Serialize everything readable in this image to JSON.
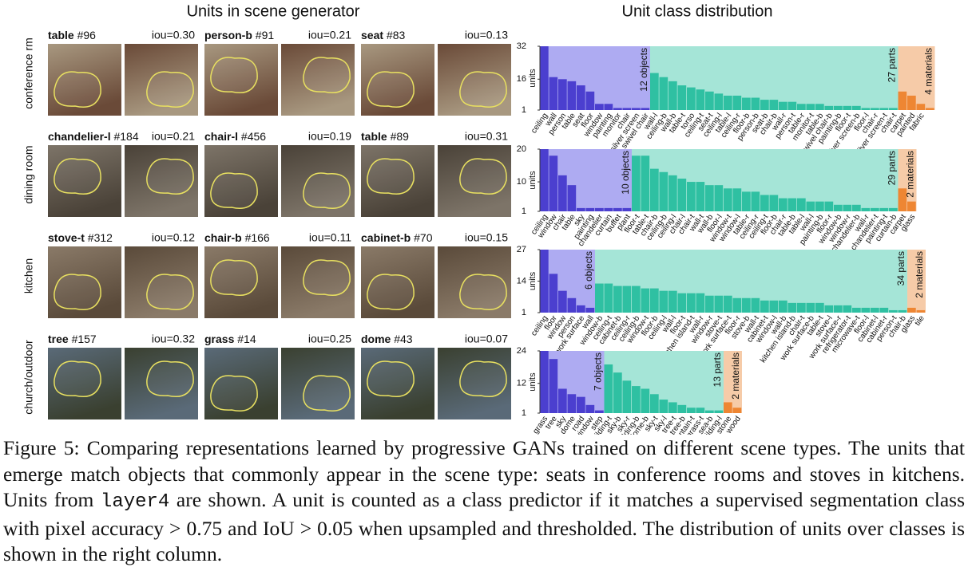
{
  "left": {
    "title": "Units in scene generator",
    "rows": [
      {
        "scene": "conference rm",
        "units": [
          {
            "name": "table",
            "id": "#96",
            "iou": "iou=0.30"
          },
          {
            "name": "person-b",
            "id": "#91",
            "iou": "iou=0.21"
          },
          {
            "name": "seat",
            "id": "#83",
            "iou": "iou=0.13"
          }
        ]
      },
      {
        "scene": "dining room",
        "units": [
          {
            "name": "chandelier-l",
            "id": "#184",
            "iou": "iou=0.21"
          },
          {
            "name": "chair-l",
            "id": "#456",
            "iou": "iou=0.19"
          },
          {
            "name": "table",
            "id": "#89",
            "iou": "iou=0.31"
          }
        ]
      },
      {
        "scene": "kitchen",
        "units": [
          {
            "name": "stove-t",
            "id": "#312",
            "iou": "iou=0.12"
          },
          {
            "name": "chair-b",
            "id": "#166",
            "iou": "iou=0.11"
          },
          {
            "name": "cabinet-b",
            "id": "#70",
            "iou": "iou=0.15"
          }
        ]
      },
      {
        "scene": "church/outdoor",
        "units": [
          {
            "name": "tree",
            "id": "#157",
            "iou": "iou=0.32"
          },
          {
            "name": "grass",
            "id": "#14",
            "iou": "iou=0.25"
          },
          {
            "name": "dome",
            "id": "#43",
            "iou": "iou=0.07"
          }
        ]
      }
    ]
  },
  "right_title": "Unit class distribution",
  "chart_data": [
    {
      "type": "bar",
      "ylabel": "units",
      "ylim": [
        1,
        32
      ],
      "yticks": [
        1,
        16,
        32
      ],
      "groups": [
        {
          "label": "12 objects",
          "color": "#4b3fcf",
          "background": "#aeabf2",
          "categories": [
            "ceiling",
            "wall",
            "person",
            "table",
            "seat",
            "floor",
            "window",
            "painting",
            "monitor",
            "chair",
            "silver screen",
            "swivel chair"
          ],
          "values": [
            32,
            17,
            16,
            15,
            13,
            10,
            4,
            4,
            2,
            2,
            2,
            2
          ]
        },
        {
          "label": "27 parts",
          "color": "#2fc0a2",
          "background": "#a5e5d7",
          "categories": [
            "wall-l",
            "ceiling-b",
            "wall-b",
            "table-t",
            "torso",
            "ceiling-t",
            "seat-t",
            "ceiling-l",
            "table-l",
            "ceiling-r",
            "floor-b",
            "person-b",
            "seat-b",
            "chair-b",
            "wall-r",
            "person-t",
            "table-r",
            "monitor-t",
            "table-b",
            "swivel chair-b",
            "painting-b",
            "floor-t",
            "silver screen-b",
            "floor-l",
            "chair-r",
            "silver screen-t",
            "chair-t"
          ],
          "values": [
            19,
            17,
            15,
            13,
            12,
            11,
            10,
            9,
            8,
            8,
            7,
            7,
            6,
            6,
            5,
            5,
            4,
            4,
            4,
            3,
            3,
            3,
            3,
            2,
            2,
            2,
            2
          ]
        },
        {
          "label": "4 materials",
          "color": "#ee8633",
          "background": "#f6cba8",
          "categories": [
            "carpet",
            "painted",
            "fabric",
            null
          ],
          "values": [
            10,
            8,
            4,
            2
          ]
        }
      ]
    },
    {
      "type": "bar",
      "ylabel": "units",
      "ylim": [
        1,
        20
      ],
      "yticks": [
        1,
        10,
        20
      ],
      "groups": [
        {
          "label": "10 objects",
          "color": "#4b3fcf",
          "background": "#aeabf2",
          "categories": [
            "ceiling",
            "window",
            "chair",
            "table",
            "sky",
            "painting",
            "chandelier",
            "curtain",
            "buffet",
            "plant"
          ],
          "values": [
            20,
            18,
            12,
            9,
            2,
            2,
            2,
            2,
            2,
            2
          ]
        },
        {
          "label": "29 parts",
          "color": "#2fc0a2",
          "background": "#a5e5d7",
          "categories": [
            "floor-t",
            "table-t",
            "chair-b",
            "ceiling-b",
            "ceiling-l",
            "chair-l",
            "chair-t",
            "wall-t",
            "wall-b",
            "floor-l",
            "window-t",
            "window-l",
            "table-r",
            "ceiling-r",
            "ceiling-t",
            "floor-b",
            "chair-r",
            "table-b",
            "table-l",
            "wall-l",
            "painting-b",
            "floor-r",
            "window-b",
            "window-r",
            "chandelier-b",
            "wall-r",
            "chandelier-t",
            "painting-t",
            "curtain-b"
          ],
          "values": [
            18,
            18,
            14,
            13,
            12,
            11,
            10,
            10,
            9,
            9,
            8,
            8,
            7,
            7,
            6,
            6,
            5,
            5,
            5,
            4,
            4,
            4,
            3,
            3,
            3,
            2,
            2,
            2,
            2
          ]
        },
        {
          "label": "2 materials",
          "color": "#ee8633",
          "background": "#f6cba8",
          "categories": [
            "carpet",
            "glass"
          ],
          "values": [
            8,
            4
          ]
        }
      ]
    },
    {
      "type": "bar",
      "ylabel": "units",
      "ylim": [
        1,
        27
      ],
      "yticks": [
        1,
        14,
        27
      ],
      "groups": [
        {
          "label": "6 objects",
          "color": "#4b3fcf",
          "background": "#aeabf2",
          "categories": [
            "ceiling",
            "floor",
            "window",
            "person",
            "work surface",
            "wall"
          ],
          "values": [
            27,
            17,
            10,
            7,
            4,
            3
          ]
        },
        {
          "label": "34 parts",
          "color": "#2fc0a2",
          "background": "#a5e5d7",
          "categories": [
            "window-b",
            "ceiling-t",
            "cabinet-b",
            "ceiling-r",
            "ceiling-b",
            "window-t",
            "floor-b",
            "ceiling-l",
            "wall-l",
            "floor-t",
            "kitchen island-t",
            "wall-r",
            "window-r",
            "stove-t",
            "work surface-t",
            "floor-r",
            "stove-b",
            "wall-t",
            "cabinet-t",
            "window-l",
            "wall-b",
            "kitchen island-b",
            "chair-t",
            "work surface-b",
            "table-t",
            "stove-l",
            "work surface-r",
            "refrigerator-t",
            "microwave-t",
            "floor-l",
            "cabinet-l",
            "cabinet-r",
            "person-t",
            "chair-b"
          ],
          "values": [
            13,
            13,
            12,
            12,
            12,
            11,
            11,
            10,
            10,
            9,
            9,
            9,
            8,
            8,
            8,
            7,
            7,
            7,
            6,
            6,
            6,
            5,
            5,
            5,
            5,
            4,
            4,
            4,
            3,
            3,
            3,
            3,
            2,
            2
          ]
        },
        {
          "label": "2 materials",
          "color": "#ee8633",
          "background": "#f6cba8",
          "categories": [
            "glass",
            "tile"
          ],
          "values": [
            3,
            2
          ]
        }
      ]
    },
    {
      "type": "bar",
      "ylabel": "units",
      "ylim": [
        1,
        24
      ],
      "yticks": [
        1,
        12,
        24
      ],
      "groups": [
        {
          "label": "7 objects",
          "color": "#4b3fcf",
          "background": "#aeabf2",
          "categories": [
            "grass",
            "tree",
            "sky",
            "dome",
            "road",
            "window",
            "step"
          ],
          "values": [
            24,
            21,
            10,
            8,
            7,
            4,
            2
          ]
        },
        {
          "label": "13 parts",
          "color": "#2fc0a2",
          "background": "#a5e5d7",
          "categories": [
            "building-t",
            "sky-b",
            "sky-r",
            "building-b",
            "dome-b",
            "sky-t",
            "sky-l",
            "tree-t",
            "tree-b",
            "mountain-t",
            "grass-t",
            "sea-b",
            "building-l"
          ],
          "values": [
            19,
            16,
            13,
            11,
            10,
            8,
            6,
            5,
            4,
            3,
            3,
            2,
            2
          ]
        },
        {
          "label": "2 materials",
          "color": "#ee8633",
          "background": "#f6cba8",
          "categories": [
            "stone",
            "wood"
          ],
          "values": [
            5,
            3
          ]
        }
      ]
    }
  ],
  "caption": {
    "part1": "Figure 5: Comparing representations learned by progressive GANs trained on different scene types. The units that emerge match objects that commonly appear in the scene type: seats in conference rooms and stoves in kitchens. Units from",
    "code": "layer4",
    "part2": "are shown. A unit is counted as a class predictor if it matches a supervised segmentation class with pixel accuracy > 0.75 and IoU > 0.05 when upsampled and thresholded. The distribution of units over classes is shown in the right column."
  }
}
